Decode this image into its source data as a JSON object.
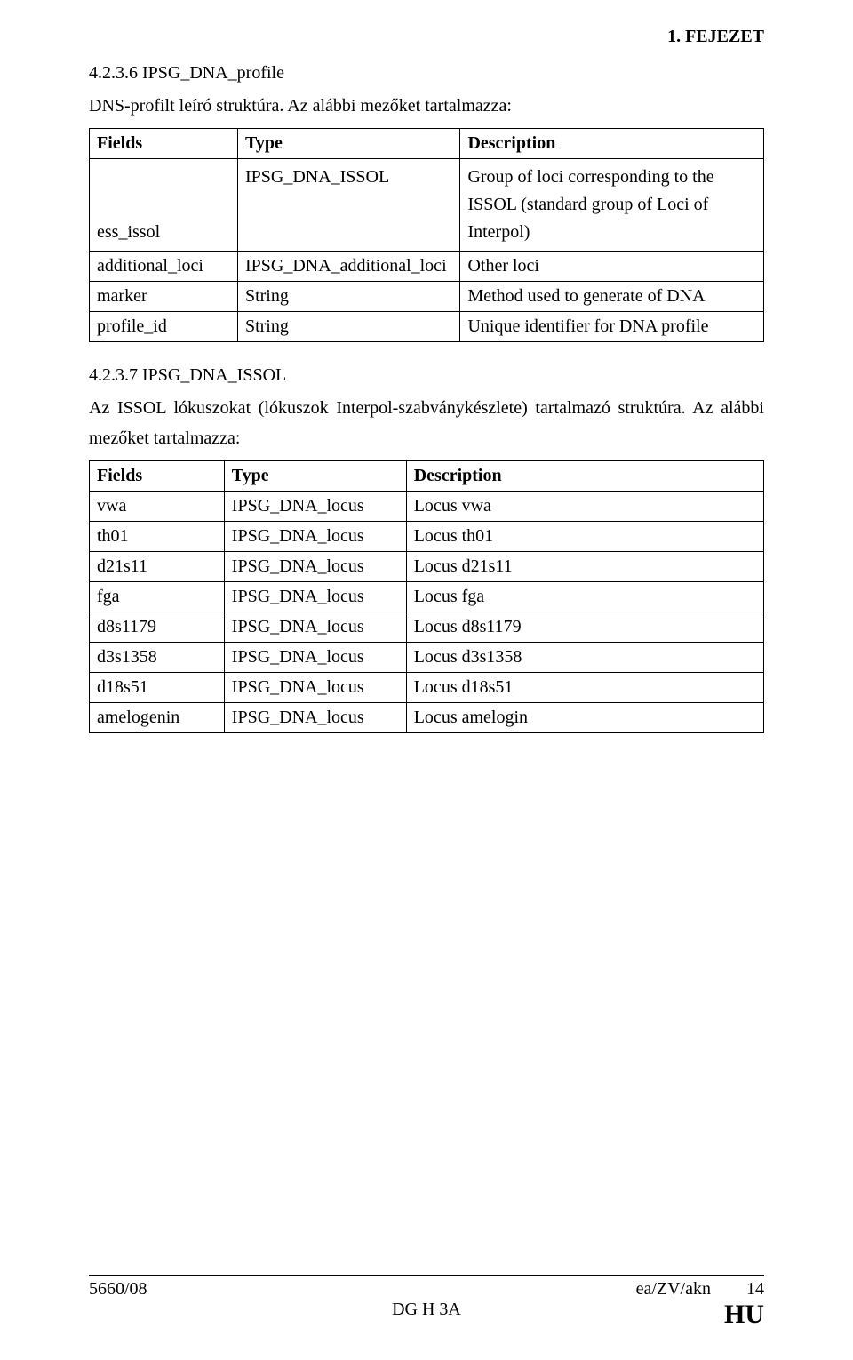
{
  "header": {
    "chapter": "1. FEJEZET"
  },
  "section1": {
    "heading": "4.2.3.6 IPSG_DNA_profile",
    "intro": "DNS-profilt leíró struktúra. Az alábbi mezőket tartalmazza:",
    "table": {
      "headers": [
        "Fields",
        "Type",
        "Description"
      ],
      "rows": [
        {
          "c1": "ess_issol",
          "c2": "IPSG_DNA_ISSOL",
          "c3": "Group of loci corresponding to the ISSOL (standard group of Loci of Interpol)"
        },
        {
          "c1": "additional_loci",
          "c2": "IPSG_DNA_additional_loci",
          "c3": "Other loci"
        },
        {
          "c1": "marker",
          "c2": "String",
          "c3": "Method used to generate of DNA"
        },
        {
          "c1": "profile_id",
          "c2": "String",
          "c3": "Unique identifier for DNA profile"
        }
      ]
    }
  },
  "section2": {
    "heading": "4.2.3.7 IPSG_DNA_ISSOL",
    "intro": "Az ISSOL lókuszokat (lókuszok Interpol-szabványkészlete) tartalmazó struktúra. Az alábbi mezőket tartalmazza:",
    "table": {
      "headers": [
        "Fields",
        "Type",
        "Description"
      ],
      "rows": [
        {
          "c1": "vwa",
          "c2": "IPSG_DNA_locus",
          "c3": "Locus vwa"
        },
        {
          "c1": "th01",
          "c2": "IPSG_DNA_locus",
          "c3": "Locus th01"
        },
        {
          "c1": "d21s11",
          "c2": "IPSG_DNA_locus",
          "c3": "Locus d21s11"
        },
        {
          "c1": "fga",
          "c2": "IPSG_DNA_locus",
          "c3": "Locus fga"
        },
        {
          "c1": "d8s1179",
          "c2": "IPSG_DNA_locus",
          "c3": "Locus d8s1179"
        },
        {
          "c1": "d3s1358",
          "c2": "IPSG_DNA_locus",
          "c3": "Locus d3s1358"
        },
        {
          "c1": "d18s51",
          "c2": "IPSG_DNA_locus",
          "c3": "Locus d18s51"
        },
        {
          "c1": "amelogenin",
          "c2": "IPSG_DNA_locus",
          "c3": "Locus amelogin"
        }
      ]
    }
  },
  "footer": {
    "left": "5660/08",
    "center": "DG H 3A",
    "right_small": "ea/ZV/akn",
    "page_num": "14",
    "right_big": "HU"
  }
}
